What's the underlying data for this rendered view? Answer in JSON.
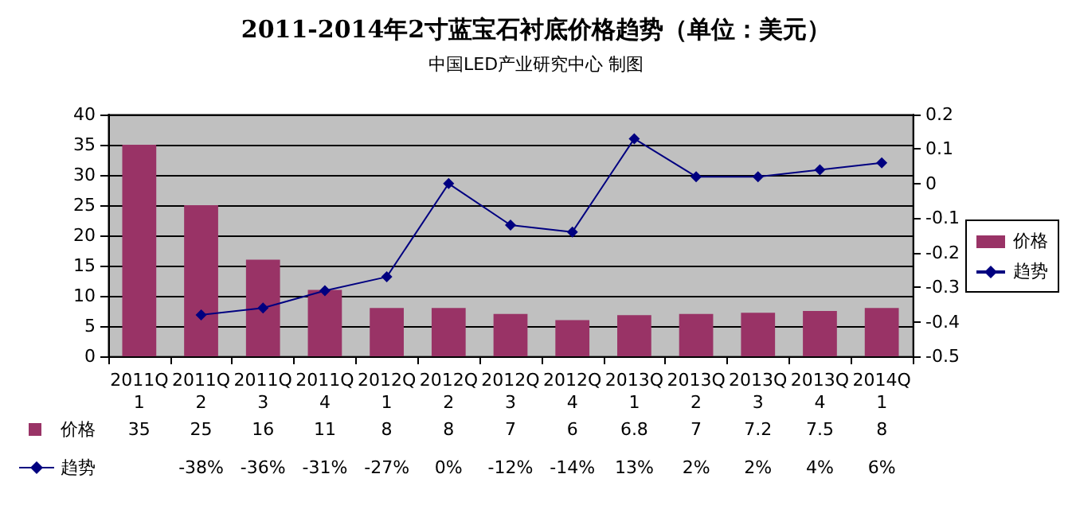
{
  "chart_data": {
    "type": "bar",
    "title": "2011-2014年2寸蓝宝石衬底价格趋势（单位：美元）",
    "subtitle": "中国LED产业研究中心 制图",
    "categories": [
      "2011Q1",
      "2011Q2",
      "2011Q3",
      "2011Q4",
      "2012Q1",
      "2012Q2",
      "2012Q3",
      "2012Q4",
      "2013Q1",
      "2013Q2",
      "2013Q3",
      "2013Q4",
      "2014Q1"
    ],
    "series": [
      {
        "name": "价格",
        "color": "#993366",
        "values": [
          35,
          25,
          16,
          11,
          8,
          8,
          7,
          6,
          6.8,
          7,
          7.2,
          7.5,
          8
        ]
      },
      {
        "name": "趋势",
        "type": "line",
        "axis": "y2",
        "color": "#000080",
        "values": [
          null,
          -0.38,
          -0.36,
          -0.31,
          -0.27,
          0,
          -0.12,
          -0.14,
          0.13,
          0.02,
          0.02,
          0.04,
          0.06
        ],
        "value_labels": [
          null,
          "-38%",
          "-36%",
          "-31%",
          "-27%",
          "0%",
          "-12%",
          "-14%",
          "13%",
          "2%",
          "2%",
          "4%",
          "6%"
        ]
      }
    ],
    "ylim": [
      0,
      40
    ],
    "yticks": [
      0,
      5,
      10,
      15,
      20,
      25,
      30,
      35,
      40
    ],
    "y2lim": [
      -0.5,
      0.2
    ],
    "y2ticks": [
      -0.5,
      -0.4,
      -0.3,
      -0.2,
      -0.1,
      0,
      0.1,
      0.2
    ],
    "data_labels": true,
    "grid": "y",
    "legend": "right",
    "marker": "diamond"
  }
}
